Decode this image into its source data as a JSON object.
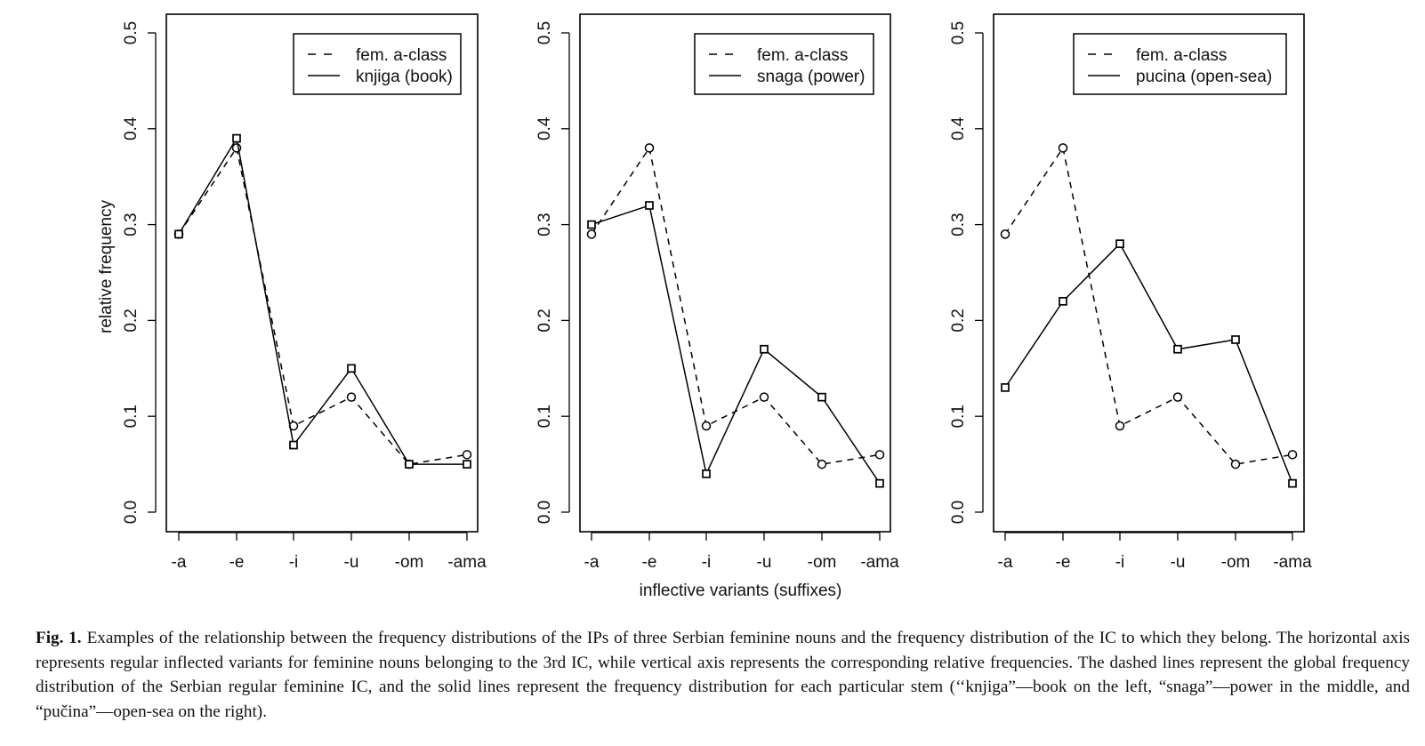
{
  "chart_data": {
    "type": "line",
    "panels": [
      {
        "x": [
          "-a",
          "-e",
          "-i",
          "-u",
          "-om",
          "-ama"
        ],
        "ylabel": "relative frequency",
        "xlabel": "",
        "ylim": [
          0,
          0.5
        ],
        "yticks": [
          "0.0",
          "0.1",
          "0.2",
          "0.3",
          "0.4",
          "0.5"
        ],
        "legend_position": "top-right",
        "series": [
          {
            "name": "fem. a-class",
            "style": "dashed",
            "marker": "circle",
            "values": [
              0.29,
              0.38,
              0.09,
              0.12,
              0.05,
              0.06
            ]
          },
          {
            "name": "knjiga (book)",
            "style": "solid",
            "marker": "square",
            "values": [
              0.29,
              0.39,
              0.07,
              0.15,
              0.05,
              0.05
            ]
          }
        ]
      },
      {
        "x": [
          "-a",
          "-e",
          "-i",
          "-u",
          "-om",
          "-ama"
        ],
        "ylabel": "",
        "xlabel": "inflective variants (suffixes)",
        "ylim": [
          0,
          0.5
        ],
        "yticks": [
          "0.0",
          "0.1",
          "0.2",
          "0.3",
          "0.4",
          "0.5"
        ],
        "legend_position": "top-right",
        "series": [
          {
            "name": "fem. a-class",
            "style": "dashed",
            "marker": "circle",
            "values": [
              0.29,
              0.38,
              0.09,
              0.12,
              0.05,
              0.06
            ]
          },
          {
            "name": "snaga (power)",
            "style": "solid",
            "marker": "square",
            "values": [
              0.3,
              0.32,
              0.04,
              0.17,
              0.12,
              0.03
            ]
          }
        ]
      },
      {
        "x": [
          "-a",
          "-e",
          "-i",
          "-u",
          "-om",
          "-ama"
        ],
        "ylabel": "",
        "xlabel": "",
        "ylim": [
          0,
          0.5
        ],
        "yticks": [
          "0.0",
          "0.1",
          "0.2",
          "0.3",
          "0.4",
          "0.5"
        ],
        "legend_position": "top-right",
        "series": [
          {
            "name": "fem. a-class",
            "style": "dashed",
            "marker": "circle",
            "values": [
              0.29,
              0.38,
              0.09,
              0.12,
              0.05,
              0.06
            ]
          },
          {
            "name": "pucina (open-sea)",
            "style": "solid",
            "marker": "square",
            "values": [
              0.13,
              0.22,
              0.28,
              0.17,
              0.18,
              0.03
            ]
          }
        ]
      }
    ]
  },
  "caption": {
    "label": "Fig. 1.",
    "text": "Examples of the relationship between the frequency distributions of the IPs of three Serbian feminine nouns and the frequency distribution of the IC to which they belong. The horizontal axis represents regular inflected variants for feminine nouns belonging to the 3rd IC, while vertical axis represents the corresponding relative frequencies. The dashed lines represent the global frequency distribution of the Serbian regular feminine IC, and the solid lines represent the frequency distribution for each particular stem (‘‘knjiga”—book on the left, “snaga”—power in the middle, and “pučina”—open-sea on the right)."
  }
}
